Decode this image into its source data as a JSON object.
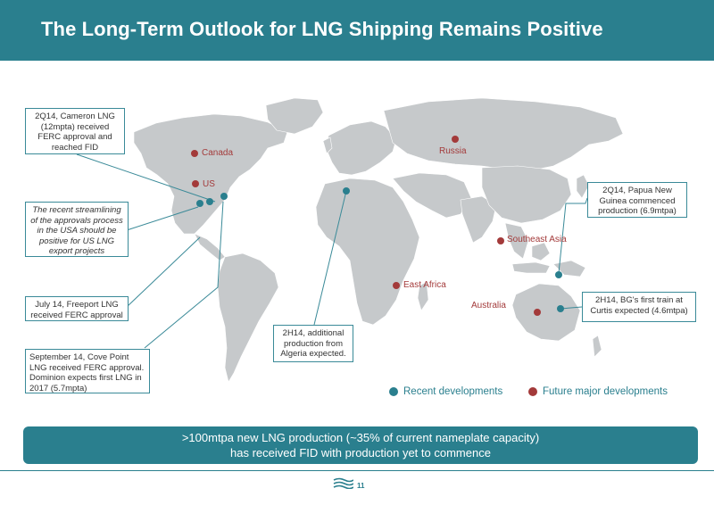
{
  "title": "The Long-Term Outlook for LNG Shipping Remains Positive",
  "markers": {
    "recent_color": "#2a7f8e",
    "future_color": "#a33a3a"
  },
  "places": {
    "canada": "Canada",
    "us": "US",
    "russia": "Russia",
    "southeast_asia": "Southeast Asia",
    "east_africa": "East Africa",
    "australia": "Australia"
  },
  "callouts": {
    "cameron": "2Q14, Cameron LNG (12mpta) received FERC approval and reached FID",
    "streamlining": "The recent streamlining of the approvals process in the USA should be positive for US LNG export projects",
    "freeport": "July 14, Freeport LNG received FERC approval",
    "cove_point": "September 14, Cove Point LNG received FERC approval. Dominion expects first LNG in 2017 (5.7mpta)",
    "algeria": "2H14, additional production from Algeria expected.",
    "png": "2Q14, Papua New Guinea commenced production (6.9mtpa)",
    "curtis": "2H14, BG's first train at Curtis expected (4.6mtpa)"
  },
  "legend": {
    "recent": "Recent developments",
    "future": "Future major developments"
  },
  "banner": {
    "line1": ">100mtpa new LNG production (~35% of current nameplate capacity)",
    "line2": "has received FID with production yet to commence"
  },
  "footer": {
    "page_number": "11",
    "logo_icon": "wave-logo-icon"
  }
}
